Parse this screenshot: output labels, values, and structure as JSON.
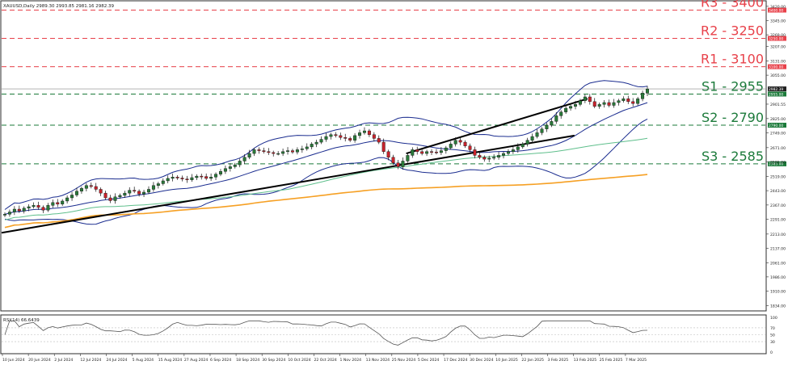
{
  "chart_data": {
    "type": "candlestick",
    "symbol_header": "XAUUSD,Daily  2989.30 2993.85 2981.16 2982.39",
    "price_axis": {
      "ticks": [
        3420.0,
        3345.0,
        3269.0,
        3207.0,
        3131.0,
        3055.0,
        2901.55,
        2825.0,
        2749.0,
        2671.0,
        2595.0,
        2519.0,
        2443.0,
        2367.0,
        2291.0,
        2213.0,
        2137.0,
        2061.0,
        1986.0,
        1910.0,
        1834.0
      ],
      "range": [
        1810,
        3445
      ]
    },
    "x_ticks": [
      "10 Jun 2024",
      "20 Jun 2024",
      "2 Jul 2024",
      "12 Jul 2024",
      "24 Jul 2024",
      "5 Aug 2024",
      "15 Aug 2024",
      "27 Aug 2024",
      "6 Sep 2024",
      "18 Sep 2024",
      "30 Sep 2024",
      "10 Oct 2024",
      "22 Oct 2024",
      "1 Nov 2024",
      "13 Nov 2024",
      "25 Nov 2024",
      "5 Dec 2024",
      "17 Dec 2024",
      "30 Dec 2024",
      "10 Jan 2025",
      "22 Jan 2025",
      "3 Feb 2025",
      "13 Feb 2025",
      "25 Feb 2025",
      "7 Mar 2025"
    ],
    "levels": [
      {
        "label": "R3 - 3400",
        "value": 3400,
        "tag": "3400.00",
        "color": "#e8414a"
      },
      {
        "label": "R2 - 3250",
        "value": 3250,
        "tag": "3250.00",
        "color": "#e8414a"
      },
      {
        "label": "R1 - 3100",
        "value": 3100,
        "tag": "3100.00",
        "color": "#e8414a"
      },
      {
        "label": "S1 - 2955",
        "value": 2955,
        "tag": "2955.00",
        "color": "#1b7a3a"
      },
      {
        "label": "S2 - 2790",
        "value": 2790,
        "tag": "2790.00",
        "color": "#1b7a3a"
      },
      {
        "label": "S3 - 2585",
        "value": 2585,
        "tag": "2585.00",
        "color": "#1b7a3a"
      }
    ],
    "last_price": {
      "value": 2982.39,
      "label": "2982.39"
    },
    "close_series": [
      2318,
      2330,
      2345,
      2335,
      2350,
      2358,
      2365,
      2355,
      2340,
      2365,
      2380,
      2372,
      2388,
      2405,
      2420,
      2440,
      2455,
      2470,
      2465,
      2450,
      2430,
      2405,
      2390,
      2410,
      2418,
      2430,
      2445,
      2440,
      2425,
      2435,
      2450,
      2470,
      2480,
      2495,
      2508,
      2515,
      2510,
      2505,
      2500,
      2512,
      2520,
      2518,
      2508,
      2515,
      2530,
      2545,
      2560,
      2570,
      2580,
      2600,
      2620,
      2640,
      2660,
      2655,
      2650,
      2645,
      2640,
      2640,
      2650,
      2655,
      2648,
      2660,
      2665,
      2675,
      2690,
      2700,
      2715,
      2730,
      2740,
      2735,
      2725,
      2720,
      2710,
      2735,
      2750,
      2760,
      2740,
      2720,
      2700,
      2650,
      2620,
      2590,
      2570,
      2600,
      2630,
      2660,
      2650,
      2640,
      2650,
      2648,
      2645,
      2655,
      2670,
      2690,
      2710,
      2700,
      2680,
      2660,
      2630,
      2620,
      2610,
      2615,
      2620,
      2630,
      2640,
      2650,
      2660,
      2675,
      2690,
      2710,
      2730,
      2750,
      2770,
      2790,
      2810,
      2840,
      2860,
      2880,
      2890,
      2900,
      2920,
      2940,
      2915,
      2890,
      2900,
      2910,
      2895,
      2910,
      2920,
      2930,
      2915,
      2905,
      2930,
      2960,
      2982
    ],
    "rsi": {
      "label": "RSI(14) 66.6439",
      "ticks": [
        100,
        70,
        50,
        30,
        0
      ],
      "range": [
        0,
        100
      ]
    }
  },
  "colors": {
    "bull": "#2a7a3a",
    "bear": "#c8232c",
    "bollinger": "#1a2c8f",
    "ma_mid": "#5fbf8c",
    "ma_long": "#f6a024",
    "trendline": "#000000",
    "rsi_line": "#555555"
  }
}
